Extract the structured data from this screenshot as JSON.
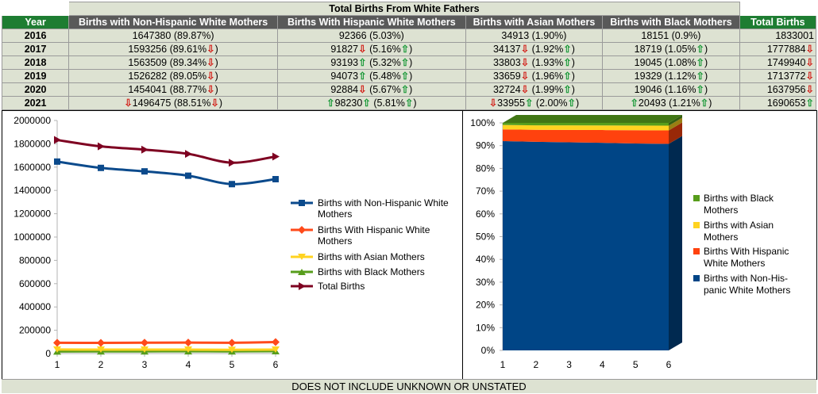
{
  "table": {
    "title": "Total Births From White Fathers",
    "headers": [
      "Year",
      "Births with Non-Hispanic White Mothers",
      "Births With Hispanic White Mothers",
      "Births with Asian Mothers",
      "Births with Black Mothers",
      "Total Births"
    ],
    "rows": [
      {
        "year": "2016",
        "nhw": {
          "pre": "",
          "val": "1647380",
          "valArrow": "",
          "pct": "(89.87%)",
          "pctArrow": ""
        },
        "hw": {
          "pre": "",
          "val": "92366",
          "valArrow": "",
          "pct": "(5.03%)",
          "pctArrow": ""
        },
        "as": {
          "pre": "",
          "val": "34913",
          "valArrow": "",
          "pct": "(1.90%)",
          "pctArrow": ""
        },
        "bl": {
          "pre": "",
          "val": "18151",
          "valArrow": "",
          "pct": "(0.9%)",
          "pctArrow": ""
        },
        "total": {
          "pre": "",
          "val": "1833001",
          "valArrow": ""
        }
      },
      {
        "year": "2017",
        "nhw": {
          "pre": "",
          "val": "1593256",
          "valArrow": "",
          "pct": "(89.61%",
          "pctArrow": "down"
        },
        "hw": {
          "pre": "",
          "val": "91827",
          "valArrow": "down",
          "pct": "(5.16%",
          "pctArrow": "up"
        },
        "as": {
          "pre": "",
          "val": "34137",
          "valArrow": "down",
          "pct": "(1.92%",
          "pctArrow": "up"
        },
        "bl": {
          "pre": "",
          "val": "18719",
          "valArrow": "",
          "pct": "(1.05%",
          "pctArrow": "up"
        },
        "total": {
          "pre": "",
          "val": "1777884",
          "valArrow": "down"
        }
      },
      {
        "year": "2018",
        "nhw": {
          "pre": "",
          "val": "1563509",
          "valArrow": "",
          "pct": "(89.34%",
          "pctArrow": "down"
        },
        "hw": {
          "pre": "",
          "val": "93193",
          "valArrow": "up",
          "pct": "(5.32%",
          "pctArrow": "up"
        },
        "as": {
          "pre": "",
          "val": "33803",
          "valArrow": "down",
          "pct": "(1.93%",
          "pctArrow": "up"
        },
        "bl": {
          "pre": "",
          "val": "19045",
          "valArrow": "",
          "pct": "(1.08%",
          "pctArrow": "up"
        },
        "total": {
          "pre": "",
          "val": "1749940",
          "valArrow": "down"
        }
      },
      {
        "year": "2019",
        "nhw": {
          "pre": "",
          "val": "1526282",
          "valArrow": "",
          "pct": "(89.05%",
          "pctArrow": "down"
        },
        "hw": {
          "pre": "",
          "val": "94073",
          "valArrow": "up",
          "pct": "(5.48%",
          "pctArrow": "up"
        },
        "as": {
          "pre": "",
          "val": "33659",
          "valArrow": "down",
          "pct": "(1.96%",
          "pctArrow": "up"
        },
        "bl": {
          "pre": "",
          "val": "19329",
          "valArrow": "",
          "pct": "(1.12%",
          "pctArrow": "up"
        },
        "total": {
          "pre": "",
          "val": "1713772",
          "valArrow": "down"
        }
      },
      {
        "year": "2020",
        "nhw": {
          "pre": "",
          "val": "1454041",
          "valArrow": "",
          "pct": "(88.77%",
          "pctArrow": "down"
        },
        "hw": {
          "pre": "",
          "val": "92884",
          "valArrow": "down",
          "pct": "(5.67%",
          "pctArrow": "up"
        },
        "as": {
          "pre": "",
          "val": "32724",
          "valArrow": "down",
          "pct": "(1.99%",
          "pctArrow": "up"
        },
        "bl": {
          "pre": "",
          "val": "19046",
          "valArrow": "",
          "pct": "(1.16%",
          "pctArrow": "up"
        },
        "total": {
          "pre": "",
          "val": "1637956",
          "valArrow": "down"
        }
      },
      {
        "year": "2021",
        "nhw": {
          "pre": "down",
          "val": "1496475",
          "valArrow": "",
          "pct": "(88.51%",
          "pctArrow": "down"
        },
        "hw": {
          "pre": "up",
          "val": "98230",
          "valArrow": "up",
          "pct": "(5.81%",
          "pctArrow": "up"
        },
        "as": {
          "pre": "down",
          "val": "33955",
          "valArrow": "up",
          "pct": "(2.00%",
          "pctArrow": "up"
        },
        "bl": {
          "pre": "up",
          "val": "20493",
          "valArrow": "",
          "pct": "(1.21%",
          "pctArrow": "up"
        },
        "total": {
          "pre": "",
          "val": "1690653",
          "valArrow": "up"
        }
      }
    ]
  },
  "footer": "DOES NOT INCLUDE UNKNOWN OR UNSTATED",
  "chart_data": [
    {
      "type": "line",
      "title": "",
      "xlabel": "",
      "ylabel": "",
      "categories": [
        "1",
        "2",
        "3",
        "4",
        "5",
        "6"
      ],
      "ylim": [
        0,
        2000000
      ],
      "yticks": [
        "0",
        "200000",
        "400000",
        "600000",
        "800000",
        "1000000",
        "1200000",
        "1400000",
        "1600000",
        "1800000",
        "2000000"
      ],
      "grid": false,
      "legend": "right",
      "series": [
        {
          "name": "Births with Non-Hispanic White Mothers",
          "color": "#0b4a8c",
          "marker": "square",
          "values": [
            1647380,
            1593256,
            1563509,
            1526282,
            1454041,
            1496475
          ]
        },
        {
          "name": "Births With Hispanic White Mothers",
          "color": "#ff4a1a",
          "marker": "diamond",
          "values": [
            92366,
            91827,
            93193,
            94073,
            92884,
            98230
          ]
        },
        {
          "name": "Births with Asian Mothers",
          "color": "#ffd320",
          "marker": "triangle-down",
          "values": [
            34913,
            34137,
            33803,
            33659,
            32724,
            33955
          ]
        },
        {
          "name": "Births with Black Mothers",
          "color": "#579d1c",
          "marker": "triangle-up",
          "values": [
            18151,
            18719,
            19045,
            19329,
            19046,
            20493
          ]
        },
        {
          "name": "Total Births",
          "color": "#7e0021",
          "marker": "triangle-right",
          "values": [
            1833001,
            1777884,
            1749940,
            1713772,
            1637956,
            1690653
          ]
        }
      ]
    },
    {
      "type": "area",
      "stacked": "percent",
      "title": "",
      "categories": [
        "1",
        "2",
        "3",
        "4",
        "5",
        "6"
      ],
      "ylim": [
        0,
        100
      ],
      "yticks": [
        "0%",
        "10%",
        "20%",
        "30%",
        "40%",
        "50%",
        "60%",
        "70%",
        "80%",
        "90%",
        "100%"
      ],
      "legend": "right",
      "series": [
        {
          "name": "Births with Non-His-panic White Mothers",
          "legendLines": [
            "Births with Non-His-",
            "panic White Mothers"
          ],
          "color": "#004586",
          "values": [
            89.87,
            89.61,
            89.34,
            89.05,
            88.77,
            88.51
          ]
        },
        {
          "name": "Births With Hispanic White Mothers",
          "legendLines": [
            "Births With Hispanic",
            "White Mothers"
          ],
          "color": "#ff420e",
          "values": [
            5.03,
            5.16,
            5.32,
            5.48,
            5.67,
            5.81
          ]
        },
        {
          "name": "Births with Asian Mothers",
          "legendLines": [
            "Births with Asian",
            "Mothers"
          ],
          "color": "#ffd320",
          "values": [
            1.9,
            1.92,
            1.93,
            1.96,
            1.99,
            2.0
          ]
        },
        {
          "name": "Births with Black Mothers",
          "legendLines": [
            "Births with Black",
            "Mothers"
          ],
          "color": "#579d1c",
          "values": [
            0.9,
            1.05,
            1.08,
            1.12,
            1.16,
            1.21
          ]
        }
      ]
    }
  ]
}
